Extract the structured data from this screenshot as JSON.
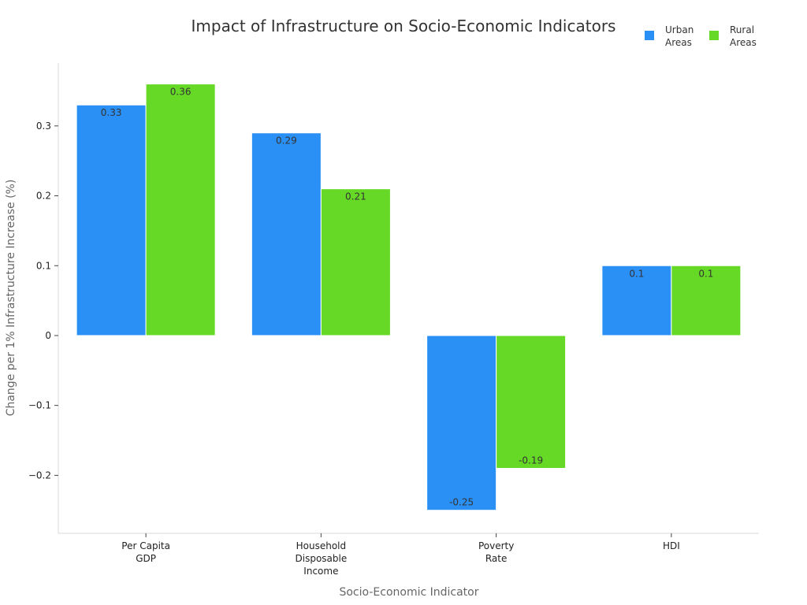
{
  "chart_data": {
    "type": "bar",
    "title": "Impact of Infrastructure on Socio-Economic Indicators",
    "xlabel": "Socio-Economic Indicator",
    "ylabel": "Change per 1% Infrastructure Increase (%)",
    "categories": [
      [
        "Per Capita",
        "GDP"
      ],
      [
        "Household",
        "Disposable",
        "Income"
      ],
      [
        "Poverty",
        "Rate"
      ],
      [
        "HDI"
      ]
    ],
    "series": [
      {
        "name": [
          "Urban",
          "Areas"
        ],
        "color": "#2b90f5",
        "values": [
          0.33,
          0.29,
          -0.25,
          0.1
        ],
        "labels": [
          "0.33",
          "0.29",
          "-0.25",
          "0.1"
        ]
      },
      {
        "name": [
          "Rural",
          "Areas"
        ],
        "color": "#66d926",
        "values": [
          0.36,
          0.21,
          -0.19,
          0.1
        ],
        "labels": [
          "0.36",
          "0.21",
          "-0.19",
          "0.1"
        ]
      }
    ],
    "ylim": [
      -0.283,
      0.39
    ],
    "yticks": [
      -0.2,
      -0.1,
      0,
      0.1,
      0.2,
      0.3
    ],
    "ytick_labels": [
      "−0.2",
      "−0.1",
      "0",
      "0.1",
      "0.2",
      "0.3"
    ],
    "grid": false,
    "legend_position": "top-right"
  }
}
